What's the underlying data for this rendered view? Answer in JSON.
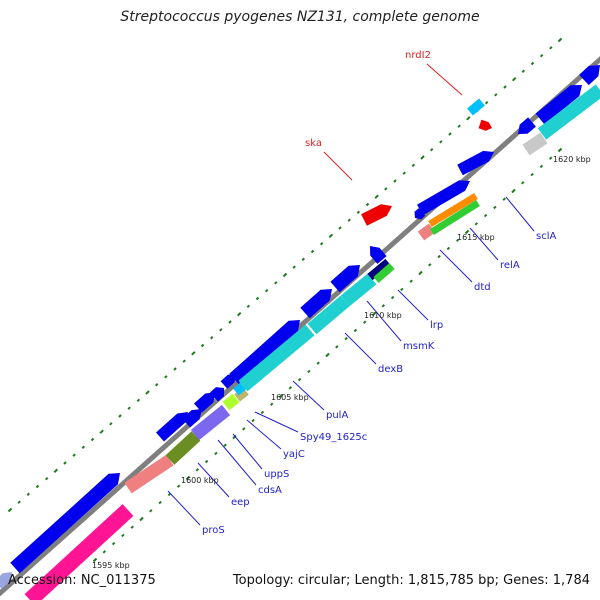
{
  "title": "Streptococcus pyogenes NZ131, complete genome",
  "accession": "Accession: NC_011375",
  "summary": "Topology: circular; Length: 1,815,785 bp; Genes: 1,784",
  "colors": {
    "backbone": "#808080",
    "tick": "#1f7a1f",
    "gene_label": "#2222cc",
    "rna_label": "#dd2222",
    "kbp_label": "#222222"
  },
  "scale_labels": [
    {
      "text": "1595 kbp"
    },
    {
      "text": "1600 kbp"
    },
    {
      "text": "1605 kbp"
    },
    {
      "text": "1610 kbp"
    },
    {
      "text": "1615 kbp"
    },
    {
      "text": "1620 kbp"
    }
  ],
  "gene_labels": [
    {
      "text": "proS",
      "kind": "gene"
    },
    {
      "text": "eep",
      "kind": "gene"
    },
    {
      "text": "cdsA",
      "kind": "gene"
    },
    {
      "text": "uppS",
      "kind": "gene"
    },
    {
      "text": "yajC",
      "kind": "gene"
    },
    {
      "text": "Spy49_1625c",
      "kind": "gene"
    },
    {
      "text": "pulA",
      "kind": "gene"
    },
    {
      "text": "dexB",
      "kind": "gene"
    },
    {
      "text": "msmK",
      "kind": "gene"
    },
    {
      "text": "lrp",
      "kind": "gene"
    },
    {
      "text": "dtd",
      "kind": "gene"
    },
    {
      "text": "relA",
      "kind": "gene"
    },
    {
      "text": "sclA",
      "kind": "gene"
    },
    {
      "text": "ska",
      "kind": "rna"
    },
    {
      "text": "nrdI2",
      "kind": "rna"
    }
  ]
}
